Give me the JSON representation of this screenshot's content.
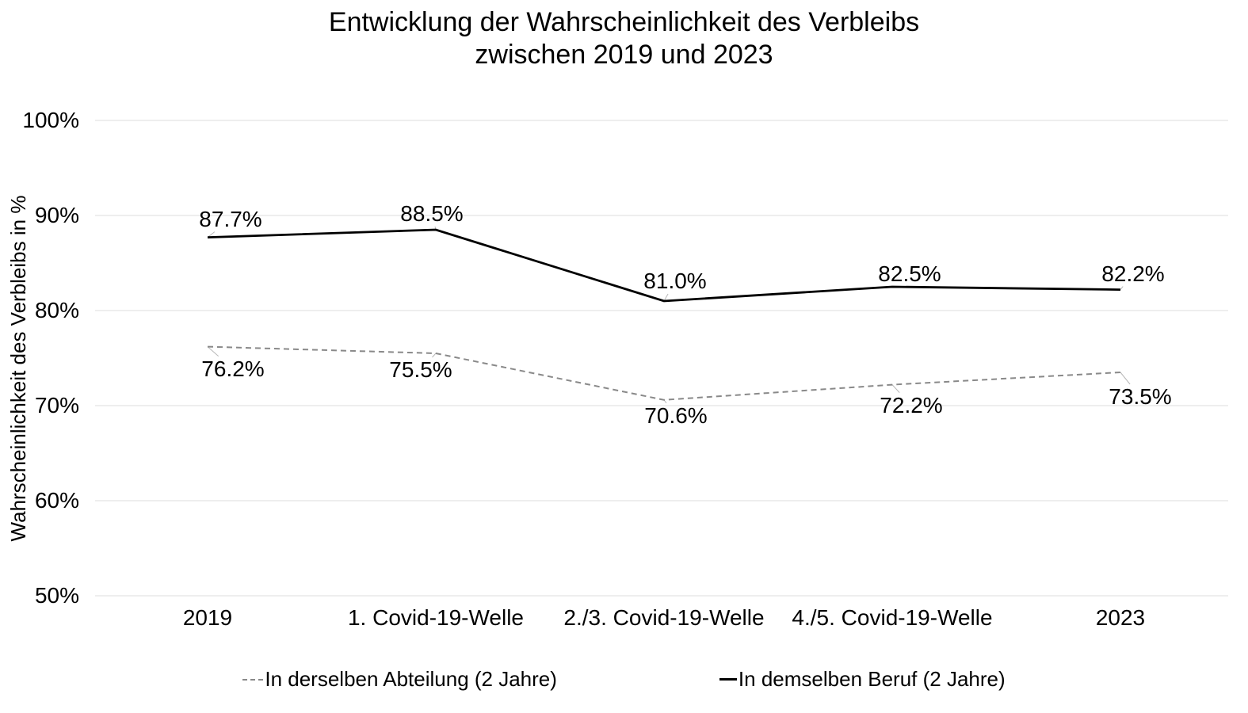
{
  "chart_data": {
    "type": "line",
    "title": "Entwicklung der Wahrscheinlichkeit des Verbleibs\nzwischen 2019 und 2023",
    "ylabel": "Wahrscheinlichkeit des Verbleibs in %",
    "xlabel": "",
    "ylim": [
      50,
      100
    ],
    "ytick_values": [
      100,
      90,
      80,
      70,
      60,
      50
    ],
    "ytick_labels": [
      "100%",
      "90%",
      "80%",
      "70%",
      "60%",
      "50%"
    ],
    "categories": [
      "2019",
      "1. Covid-19-Welle",
      "2./3. Covid-19-Welle",
      "4./5. Covid-19-Welle",
      "2023"
    ],
    "grid": "horizontal",
    "legend_position": "bottom",
    "series": [
      {
        "name": "In derselben Abteilung (2 Jahre)",
        "style": "dashed",
        "color": "#898989",
        "values": [
          76.2,
          75.5,
          70.6,
          72.2,
          73.5
        ],
        "labels": [
          "76.2%",
          "75.5%",
          "70.6%",
          "72.2%",
          "73.5%"
        ]
      },
      {
        "name": "In demselben Beruf (2 Jahre)",
        "style": "solid",
        "color": "#000000",
        "values": [
          87.7,
          88.5,
          81.0,
          82.5,
          82.2
        ],
        "labels": [
          "87.7%",
          "88.5%",
          "81.0%",
          "82.5%",
          "82.2%"
        ]
      }
    ],
    "colors": {
      "background": "#ffffff",
      "gridline": "#e8e8e8",
      "leader_line": "#b8b8b8",
      "text": "#000000"
    }
  }
}
